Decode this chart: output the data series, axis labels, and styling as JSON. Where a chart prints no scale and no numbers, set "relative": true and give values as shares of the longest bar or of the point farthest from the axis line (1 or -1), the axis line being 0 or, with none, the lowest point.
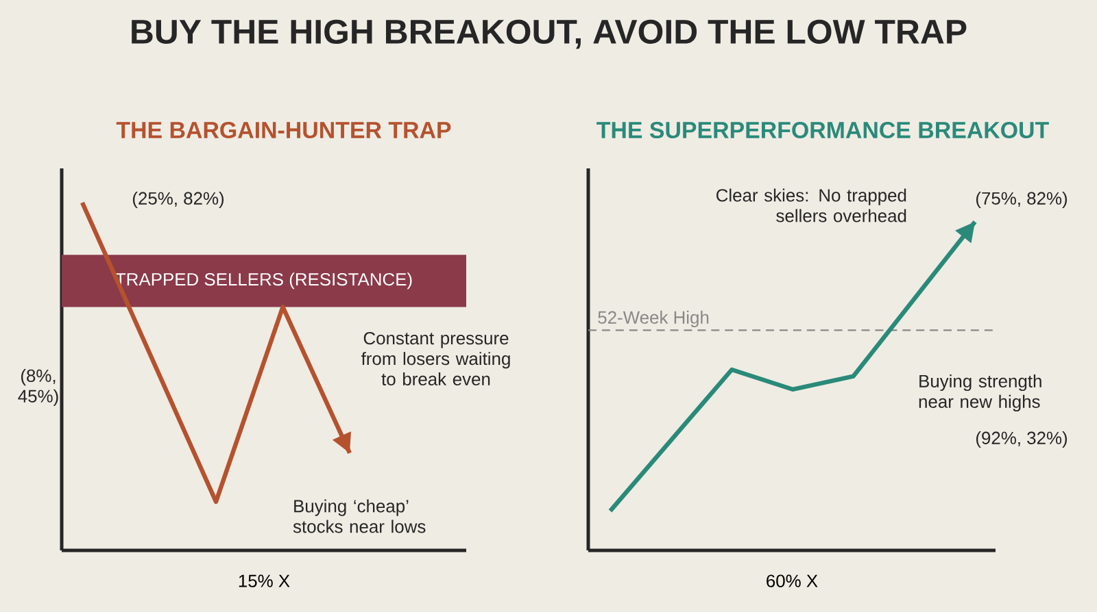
{
  "chart_data": [
    {
      "type": "line",
      "title": "BUY THE HIGH BREAKOUT, AVOID THE LOW TRAP",
      "subtitle": "THE BARGAIN-HUNTER TRAP",
      "xlabel": "15% X",
      "categories": [
        null,
        null,
        null,
        null,
        null
      ],
      "values": [
        1,
        0.57,
        0.14,
        0.7,
        0.28
      ],
      "color": "#b5522e",
      "relative": true,
      "bands": [
        {
          "axis": "y",
          "from": 0.7,
          "to": 0.85,
          "label": "TRAPPED SELLERS (RESISTANCE)",
          "color": "#8b3a4a"
        }
      ],
      "annotations": [
        "(25%, 82%)",
        "(8%, 45%)",
        "Constant pressure from losers waiting to break even",
        "Buying ‘cheap’ stocks near lows"
      ]
    },
    {
      "type": "line",
      "subtitle": "THE SUPERPERFORMANCE BREAKOUT",
      "xlabel": "60% X",
      "categories": [
        null,
        null,
        null,
        null,
        null,
        null,
        null
      ],
      "values": [
        0.12,
        0.335,
        0.55,
        0.49,
        0.53,
        0.765,
        1
      ],
      "color": "#2a8a7a",
      "relative": true,
      "ref_lines": [
        {
          "axis": "y",
          "value": 0.67,
          "label": "52-Week High",
          "color": "#888888",
          "line_style": "dashed"
        }
      ],
      "annotations": [
        "Clear skies: No trapped sellers overhead",
        "(75%, 82%)",
        "Buying strength near new highs",
        "(92%, 32%)"
      ]
    }
  ]
}
